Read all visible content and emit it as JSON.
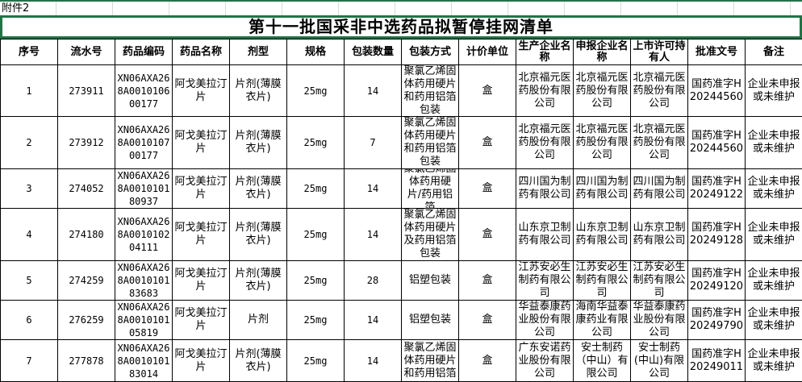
{
  "attachment_label": "附件2",
  "title": "第十一批国采非中选药品拟暂停挂网清单",
  "selection_color": "#217346",
  "headers": [
    "序号",
    "流水号",
    "药品编码",
    "药品名称",
    "剂型",
    "规格",
    "包装数量",
    "包装方式",
    "计价单位",
    "生产企业名称",
    "申报企业名称",
    "上市许可持有人",
    "批准文号",
    "备注"
  ],
  "rows": [
    [
      "1",
      "273911",
      "XN06AXA268A001010600177",
      "阿戈美拉汀片",
      "片剂(薄膜衣片)",
      "25mg",
      "14",
      "聚氯乙烯固体药用硬片和药用铝箔包装",
      "盒",
      "北京福元医药股份有限公司",
      "北京福元医药股份有限公司",
      "北京福元医药股份有限公司",
      "国药准字H20244560",
      "企业未申报或未维护"
    ],
    [
      "2",
      "273912",
      "XN06AXA268A001010700177",
      "阿戈美拉汀片",
      "片剂(薄膜衣片)",
      "25mg",
      "7",
      "聚氯乙烯固体药用硬片和药用铝箔包装",
      "盒",
      "北京福元医药股份有限公司",
      "北京福元医药股份有限公司",
      "北京福元医药股份有限公司",
      "国药准字H20244560",
      "企业未申报或未维护"
    ],
    [
      "3",
      "274052",
      "XN06AXA268A001010180937",
      "阿戈美拉汀片",
      "片剂(薄膜衣片)",
      "25mg",
      "14",
      "聚氯乙烯固体药用硬片/药用铝箔",
      "盒",
      "四川国为制药有限公司",
      "四川国为制药有限公司",
      "四川国为制药有限公司",
      "国药准字H20249122",
      "企业未申报或未维护"
    ],
    [
      "4",
      "274180",
      "XN06AXA268A001010204111",
      "阿戈美拉汀片",
      "片剂(薄膜衣片)",
      "25mg",
      "14",
      "聚氯乙烯固体药用硬片及药用铝箔包装",
      "盒",
      "山东京卫制药有限公司",
      "山东京卫制药有限公司",
      "山东京卫制药有限公司",
      "国药准字H20249128",
      "企业未申报或未维护"
    ],
    [
      "5",
      "274259",
      "XN06AXA268A001010183683",
      "阿戈美拉汀片",
      "片剂(薄膜衣片)",
      "25mg",
      "28",
      "铝塑包装",
      "盒",
      "江苏安必生制药有限公司",
      "江苏安必生制药有限公司",
      "江苏安必生制药有限公司",
      "国药准字H20249120",
      "企业未申报或未维护"
    ],
    [
      "6",
      "276259",
      "XN06AXA268A001010105819",
      "阿戈美拉汀片",
      "片剂",
      "25mg",
      "14",
      "铝塑包装",
      "盒",
      "华益泰康药业股份有限公司",
      "海南华益泰康药业有限公司",
      "华益泰康药业股份有限公司",
      "国药准字H20249790",
      "企业未申报或未维护"
    ],
    [
      "7",
      "277878",
      "XN06AXA268A001010183014",
      "阿戈美拉汀片",
      "片剂(薄膜衣片)",
      "25mg",
      "14",
      "聚氯乙烯固体药用硬片和药用铝箔",
      "盒",
      "广东安诺药业股份有限公司",
      "安士制药（中山）有限公司",
      "安士制药(中山)有限公司",
      "国药准字H20249011",
      "企业未申报或未维护"
    ]
  ]
}
